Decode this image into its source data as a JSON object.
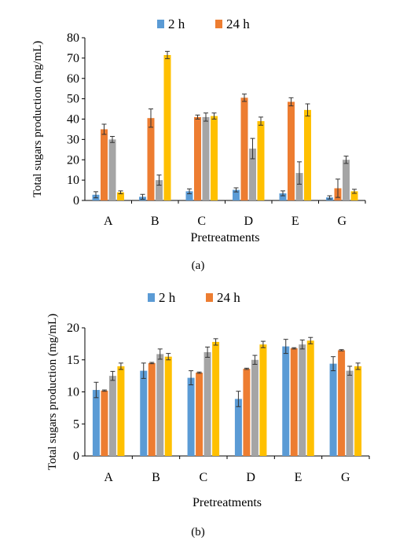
{
  "chart_data": [
    {
      "type": "bar",
      "caption": "(a)",
      "xlabel": "Pretreatments",
      "ylabel": "Total sugars production (mg/mL)",
      "ylim": [
        0,
        80
      ],
      "yticks": [
        0,
        10,
        20,
        30,
        40,
        50,
        60,
        70,
        80
      ],
      "grid": false,
      "legend_position": "top",
      "categories": [
        "A",
        "B",
        "C",
        "D",
        "E",
        "G"
      ],
      "series": [
        {
          "name": "2 h",
          "color": "#5b9bd5",
          "values": [
            2.8,
            1.8,
            4.5,
            5.2,
            3.5,
            1.5
          ],
          "errors": [
            1.5,
            1.2,
            1.2,
            1.0,
            1.2,
            0.8
          ]
        },
        {
          "name": "24 h",
          "color": "#ed7d31",
          "values": [
            35,
            40.5,
            41,
            50.5,
            48.5,
            6
          ],
          "errors": [
            2.5,
            4.5,
            1.0,
            1.8,
            2.0,
            4.5
          ]
        },
        {
          "name": "",
          "color": "#a5a5a5",
          "values": [
            30,
            10,
            41,
            25.5,
            13.5,
            20
          ],
          "errors": [
            1.5,
            2.5,
            2.0,
            5.0,
            5.5,
            1.8
          ]
        },
        {
          "name": "",
          "color": "#ffc000",
          "values": [
            4,
            71.5,
            41.5,
            39,
            44.5,
            4.5
          ],
          "errors": [
            0.7,
            1.8,
            1.5,
            2.0,
            3.0,
            1.0
          ]
        }
      ]
    },
    {
      "type": "bar",
      "caption": "(b)",
      "xlabel": "Pretreatments",
      "ylabel": "Total sugars production (mg/mL)",
      "ylim": [
        0,
        20
      ],
      "yticks": [
        0,
        5,
        10,
        15,
        20
      ],
      "grid": false,
      "legend_position": "top",
      "categories": [
        "A",
        "B",
        "C",
        "D",
        "E",
        "G"
      ],
      "series": [
        {
          "name": "2 h",
          "color": "#5b9bd5",
          "values": [
            10.3,
            13.3,
            12.2,
            8.9,
            17.1,
            14.4
          ],
          "errors": [
            1.2,
            1.2,
            1.1,
            1.2,
            1.1,
            1.1
          ]
        },
        {
          "name": "24 h",
          "color": "#ed7d31",
          "values": [
            10.2,
            14.5,
            13.0,
            13.6,
            16.8,
            16.5
          ],
          "errors": [
            0.1,
            0.1,
            0.1,
            0.1,
            0.1,
            0.1
          ]
        },
        {
          "name": "",
          "color": "#a5a5a5",
          "values": [
            12.5,
            15.9,
            16.2,
            15.0,
            17.4,
            13.3
          ],
          "errors": [
            0.7,
            0.8,
            0.8,
            0.7,
            0.7,
            0.7
          ]
        },
        {
          "name": "",
          "color": "#ffc000",
          "values": [
            14.0,
            15.5,
            17.8,
            17.4,
            18.0,
            14.0
          ],
          "errors": [
            0.5,
            0.5,
            0.5,
            0.5,
            0.5,
            0.5
          ]
        }
      ]
    }
  ]
}
